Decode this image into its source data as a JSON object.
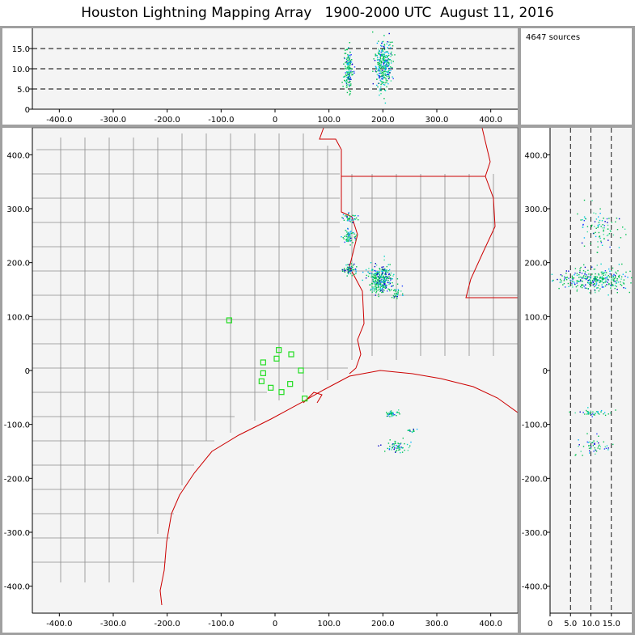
{
  "header": {
    "title": "Houston Lightning Mapping Array   1900-2000 UTC  August 11, 2016"
  },
  "counter": {
    "sources_label": "4647 sources"
  },
  "chart_data": [
    {
      "type": "scatter",
      "panel": "longitude-altitude",
      "xlim": [
        -450,
        450
      ],
      "ylim": [
        0,
        20
      ],
      "x_ticks": [
        -400,
        -300,
        -200,
        -100,
        0,
        100,
        200,
        300,
        400
      ],
      "x_tick_labels": [
        "-400.0",
        "-300.0",
        "-200.0",
        "-100.0",
        "0",
        "100.0",
        "200.0",
        "300.0",
        "400.0"
      ],
      "y_ticks": [
        0,
        5,
        10,
        15
      ],
      "y_tick_labels": [
        "0",
        "5.0",
        "10.0",
        "15.0"
      ],
      "dashed_reference_lines": [
        5,
        10,
        15
      ],
      "clusters": [
        {
          "x": 135,
          "y": 10,
          "sx": 4,
          "sy": 3,
          "n": 160
        },
        {
          "x": 200,
          "y": 11,
          "sx": 8,
          "sy": 3,
          "n": 320
        }
      ]
    },
    {
      "type": "scatter",
      "panel": "plan-view",
      "xlim": [
        -450,
        450
      ],
      "ylim": [
        -450,
        450
      ],
      "x_ticks": [
        -400,
        -300,
        -200,
        -100,
        0,
        100,
        200,
        300,
        400
      ],
      "x_tick_labels": [
        "-400.0",
        "-300.0",
        "-200.0",
        "-100.0",
        "0",
        "100.0",
        "200.0",
        "300.0",
        "400.0"
      ],
      "y_ticks": [
        -400,
        -300,
        -200,
        -100,
        0,
        100,
        200,
        300,
        400
      ],
      "y_tick_labels": [
        "-400.0",
        "-300.0",
        "-200.0",
        "-100.0",
        "0",
        "100.0",
        "200.0",
        "300.0",
        "400.0"
      ],
      "stations": [
        {
          "x": -85,
          "y": 93
        },
        {
          "x": -22,
          "y": 15
        },
        {
          "x": -25,
          "y": -20
        },
        {
          "x": -22,
          "y": -5
        },
        {
          "x": -8,
          "y": -32
        },
        {
          "x": 3,
          "y": 22
        },
        {
          "x": 7,
          "y": 38
        },
        {
          "x": 12,
          "y": -40
        },
        {
          "x": 28,
          "y": -25
        },
        {
          "x": 30,
          "y": 30
        },
        {
          "x": 48,
          "y": 0
        },
        {
          "x": 55,
          "y": -52
        }
      ],
      "clusters": [
        {
          "x": 195,
          "y": 170,
          "sx": 12,
          "sy": 12,
          "n": 300
        },
        {
          "x": 138,
          "y": 188,
          "sx": 6,
          "sy": 5,
          "n": 60
        },
        {
          "x": 136,
          "y": 250,
          "sx": 6,
          "sy": 7,
          "n": 60
        },
        {
          "x": 140,
          "y": 283,
          "sx": 8,
          "sy": 5,
          "n": 40
        },
        {
          "x": 225,
          "y": 145,
          "sx": 6,
          "sy": 6,
          "n": 30
        },
        {
          "x": 215,
          "y": -78,
          "sx": 6,
          "sy": 3,
          "n": 40
        },
        {
          "x": 225,
          "y": -140,
          "sx": 12,
          "sy": 6,
          "n": 60
        },
        {
          "x": 252,
          "y": -110,
          "sx": 5,
          "sy": 3,
          "n": 15
        }
      ]
    },
    {
      "type": "scatter",
      "panel": "altitude-latitude",
      "xlim": [
        0,
        20
      ],
      "ylim": [
        -450,
        450
      ],
      "x_ticks": [
        0,
        5,
        10,
        15
      ],
      "x_tick_labels": [
        "0",
        "5.0",
        "10.0",
        "15.0"
      ],
      "y_ticks": [
        -400,
        -300,
        -200,
        -100,
        0,
        100,
        200,
        300,
        400
      ],
      "y_tick_labels": [
        "-400.0",
        "-300.0",
        "-200.0",
        "-100.0",
        "0",
        "100.0",
        "200.0",
        "300.0",
        "400.0"
      ],
      "dashed_reference_lines": [
        5,
        10,
        15
      ],
      "clusters": [
        {
          "x": 11,
          "y": 170,
          "sx": 4.5,
          "sy": 10,
          "n": 320
        },
        {
          "x": 12,
          "y": 265,
          "sx": 3,
          "sy": 20,
          "n": 90
        },
        {
          "x": 11,
          "y": -78,
          "sx": 2.5,
          "sy": 3,
          "n": 40
        },
        {
          "x": 10,
          "y": -140,
          "sx": 2,
          "sy": 10,
          "n": 50
        }
      ]
    }
  ]
}
